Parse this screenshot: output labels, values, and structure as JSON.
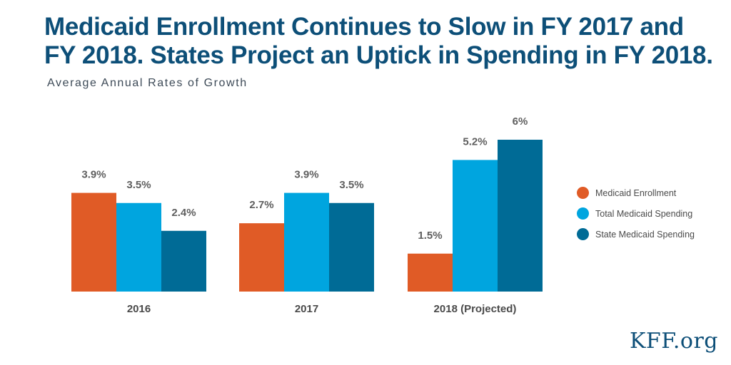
{
  "chart_data": {
    "type": "bar",
    "title": "Medicaid Enrollment Continues to Slow in FY 2017 and FY 2018. States Project an Uptick in Spending in FY 2018.",
    "subtitle": "Average Annual Rates of Growth",
    "categories": [
      "2016",
      "2017",
      "2018 (Projected)"
    ],
    "series": [
      {
        "name": "Medicaid Enrollment",
        "color": "#e05b26",
        "values": [
          3.9,
          2.7,
          1.5
        ],
        "labels": [
          "3.9%",
          "2.7%",
          "1.5%"
        ]
      },
      {
        "name": "Total Medicaid Spending",
        "color": "#00a5df",
        "values": [
          3.5,
          3.9,
          5.2
        ],
        "labels": [
          "3.5%",
          "3.9%",
          "5.2%"
        ]
      },
      {
        "name": "State Medicaid Spending",
        "color": "#006b96",
        "values": [
          2.4,
          3.5,
          6.0
        ],
        "labels": [
          "2.4%",
          "3.5%",
          "6%"
        ]
      }
    ],
    "ylim": [
      0,
      6
    ],
    "grid": false,
    "legend_position": "right"
  },
  "brand": "KFF.org"
}
